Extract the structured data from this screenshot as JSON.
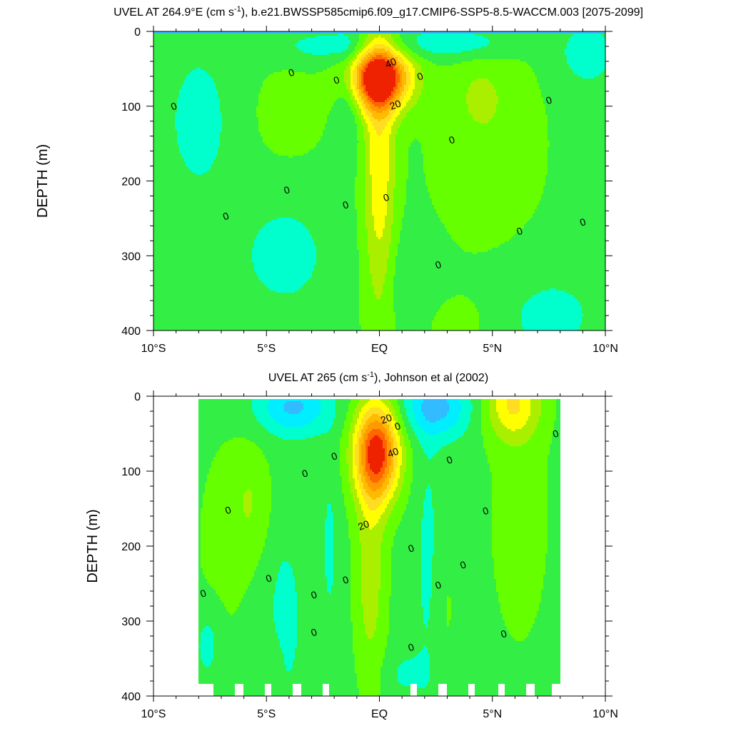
{
  "chart_data": [
    {
      "type": "contour",
      "title": "UVEL AT 264.9°E (cm s-1), b.e21.BWSSP585cmip6.f09_g17.CMIP6-SSP5-8.5-WACCM.003 [2075-2099]",
      "title_parts": {
        "pre": "UVEL AT 264.9°E (cm s",
        "sup": "-1",
        "post": "), b.e21.BWSSP585cmip6.f09_g17.CMIP6-SSP5-8.5-WACCM.003 [2075-2099]"
      },
      "ylabel": "DEPTH (m)",
      "xlim": [
        -10,
        10
      ],
      "ylim": [
        400,
        0
      ],
      "x_ticks": [
        {
          "value": -10,
          "label": "10°S"
        },
        {
          "value": -5,
          "label": "5°S"
        },
        {
          "value": 0,
          "label": "EQ"
        },
        {
          "value": 5,
          "label": "5°N"
        },
        {
          "value": 10,
          "label": "10°N"
        }
      ],
      "y_ticks": [
        {
          "value": 0,
          "label": "0"
        },
        {
          "value": 100,
          "label": "100"
        },
        {
          "value": 200,
          "label": "200"
        },
        {
          "value": 300,
          "label": "300"
        },
        {
          "value": 400,
          "label": "400"
        }
      ],
      "contour_interval": 5,
      "colors": {
        "neg_strong": "#33bbff",
        "neg": "#00eeff",
        "zero_band": "#00ffcc",
        "pos5": "#33ee44",
        "pos10": "#66ff00",
        "pos15": "#aaee00",
        "pos20": "#ffff00",
        "pos25": "#ffdd22",
        "pos30": "#ffbb00",
        "pos35": "#ff9900",
        "pos40": "#ff6600",
        "pos45": "#ee2200"
      },
      "jet_core": {
        "lat": 0,
        "depth": 62,
        "max_value": 47
      },
      "contour_labels": [
        {
          "lat": 0.5,
          "depth": 42,
          "text": "40"
        },
        {
          "lat": 0.7,
          "depth": 98,
          "text": "20"
        },
        {
          "lat": -9.1,
          "depth": 100,
          "text": "0"
        },
        {
          "lat": -3.9,
          "depth": 55,
          "text": "0"
        },
        {
          "lat": -1.9,
          "depth": 65,
          "text": "0"
        },
        {
          "lat": 1.8,
          "depth": 60,
          "text": "0"
        },
        {
          "lat": 7.5,
          "depth": 92,
          "text": "0"
        },
        {
          "lat": 3.2,
          "depth": 145,
          "text": "0"
        },
        {
          "lat": -4.1,
          "depth": 212,
          "text": "0"
        },
        {
          "lat": 0.3,
          "depth": 222,
          "text": "0"
        },
        {
          "lat": -1.5,
          "depth": 232,
          "text": "0"
        },
        {
          "lat": -6.8,
          "depth": 247,
          "text": "0"
        },
        {
          "lat": 9.0,
          "depth": 255,
          "text": "0"
        },
        {
          "lat": 6.2,
          "depth": 267,
          "text": "0"
        },
        {
          "lat": 2.6,
          "depth": 312,
          "text": "0"
        }
      ]
    },
    {
      "type": "contour",
      "title": "UVEL AT 265 (cm s-1), Johnson et al (2002)",
      "title_parts": {
        "pre": "UVEL AT 265 (cm s",
        "sup": "-1",
        "post": "), Johnson et al (2002)"
      },
      "ylabel": "DEPTH (m)",
      "xlim": [
        -10,
        10
      ],
      "ylim": [
        400,
        0
      ],
      "x_ticks": [
        {
          "value": -10,
          "label": "10°S"
        },
        {
          "value": -5,
          "label": "5°S"
        },
        {
          "value": 0,
          "label": "EQ"
        },
        {
          "value": 5,
          "label": "5°N"
        },
        {
          "value": 10,
          "label": "10°N"
        }
      ],
      "y_ticks": [
        {
          "value": 0,
          "label": "0"
        },
        {
          "value": 100,
          "label": "100"
        },
        {
          "value": 200,
          "label": "200"
        },
        {
          "value": 300,
          "label": "300"
        },
        {
          "value": 400,
          "label": "400"
        }
      ],
      "data_lat_range": [
        -8,
        8
      ],
      "contour_interval": 5,
      "colors": {
        "neg_strong": "#33bbff",
        "neg": "#00eeff",
        "zero_band": "#00ffcc",
        "pos5": "#33ee44",
        "pos10": "#66ff00",
        "pos15": "#aaee00",
        "pos20": "#ffff00",
        "pos25": "#ffdd22",
        "pos30": "#ffbb00",
        "pos35": "#ff9900",
        "pos40": "#ff6600",
        "pos45": "#ee2200"
      },
      "jet_core": {
        "lat": -0.1,
        "depth": 68,
        "max_value": 42
      },
      "contour_labels": [
        {
          "lat": 0.3,
          "depth": 30,
          "text": "20"
        },
        {
          "lat": 0.6,
          "depth": 75,
          "text": "40"
        },
        {
          "lat": -0.7,
          "depth": 172,
          "text": "20"
        },
        {
          "lat": 0.8,
          "depth": 40,
          "text": "0"
        },
        {
          "lat": -2.0,
          "depth": 80,
          "text": "0"
        },
        {
          "lat": 3.1,
          "depth": 85,
          "text": "0"
        },
        {
          "lat": 7.8,
          "depth": 50,
          "text": "0"
        },
        {
          "lat": -3.3,
          "depth": 103,
          "text": "0"
        },
        {
          "lat": -6.7,
          "depth": 152,
          "text": "0"
        },
        {
          "lat": 4.7,
          "depth": 153,
          "text": "0"
        },
        {
          "lat": 1.4,
          "depth": 203,
          "text": "0"
        },
        {
          "lat": 3.7,
          "depth": 225,
          "text": "0"
        },
        {
          "lat": -4.9,
          "depth": 243,
          "text": "0"
        },
        {
          "lat": -1.5,
          "depth": 245,
          "text": "0"
        },
        {
          "lat": 2.6,
          "depth": 252,
          "text": "0"
        },
        {
          "lat": -2.9,
          "depth": 265,
          "text": "0"
        },
        {
          "lat": -7.8,
          "depth": 263,
          "text": "0"
        },
        {
          "lat": -2.9,
          "depth": 315,
          "text": "0"
        },
        {
          "lat": 5.5,
          "depth": 317,
          "text": "0"
        },
        {
          "lat": 1.4,
          "depth": 335,
          "text": "0"
        }
      ]
    }
  ]
}
